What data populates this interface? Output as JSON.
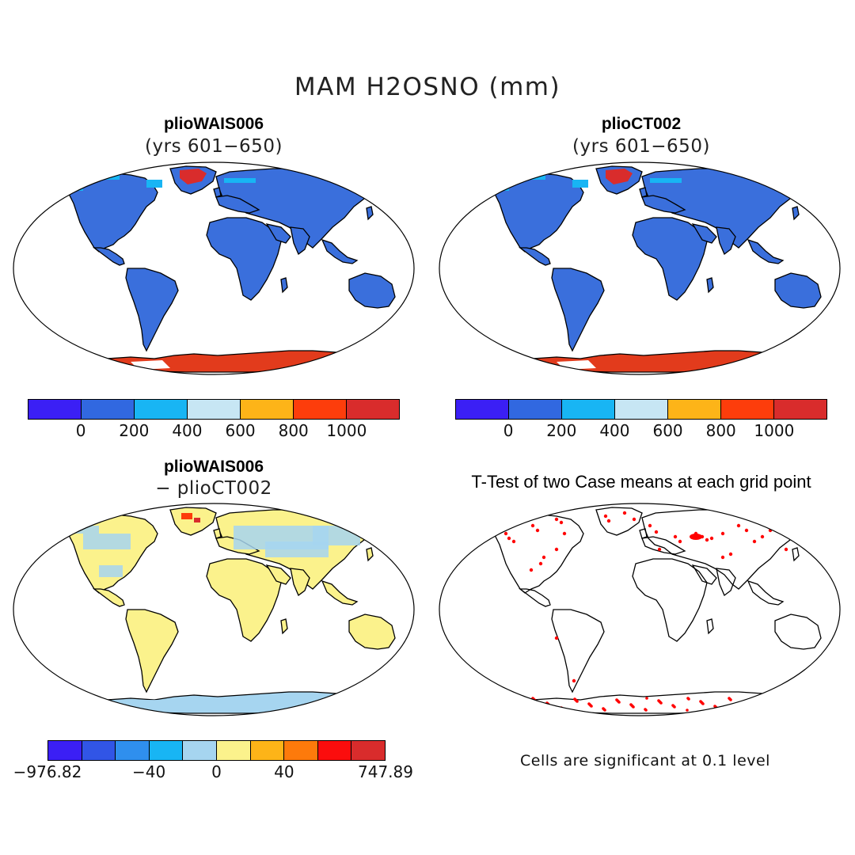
{
  "title": "MAM H2OSNO (mm)",
  "panels": [
    {
      "title": "plioWAIS006",
      "subtitle": "(yrs 601−650)",
      "field": "abs"
    },
    {
      "title": "plioCT002",
      "subtitle": "(yrs 601−650)",
      "field": "abs"
    },
    {
      "title": "plioWAIS006",
      "subtitle": "− plioCT002",
      "field": "diff"
    },
    {
      "title": "T-Test of two Case means at each grid point",
      "subtitle": "",
      "field": "ttest"
    }
  ],
  "colorbar_abs": {
    "colors": [
      "#3b1ff5",
      "#3168e0",
      "#18b5f4",
      "#c7e6f4",
      "#fdb418",
      "#fd3d0b",
      "#d92c2c"
    ],
    "ticks": [
      "0",
      "200",
      "400",
      "600",
      "800",
      "1000"
    ]
  },
  "colorbar_diff": {
    "colors": [
      "#3b1ff5",
      "#3155e6",
      "#2f8fee",
      "#18b5f4",
      "#a6d5f0",
      "#fbf28c",
      "#fdb418",
      "#fd7a0b",
      "#fb0d0d",
      "#d92c2c"
    ],
    "ticks": [
      "−976.82",
      "−40",
      "0",
      "40",
      "747.89"
    ]
  },
  "ttest_note": "Cells are significant at 0.1 level",
  "colors": {
    "land_abs": "#3a6fdc",
    "antarctic": "#e23b1c",
    "diff_land": "#fbf28c",
    "diff_cool": "#a6d5f0",
    "signif": "#ff0000"
  }
}
